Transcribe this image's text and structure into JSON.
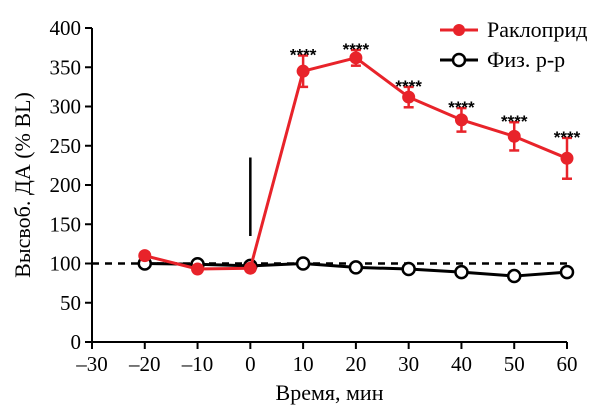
{
  "chart_data": {
    "type": "line",
    "xlabel": "Время, мин",
    "ylabel": "Высвоб. ДА (% BL)",
    "xlim": [
      -30,
      60
    ],
    "ylim": [
      0,
      400
    ],
    "xticks": [
      -30,
      -20,
      -10,
      0,
      10,
      20,
      30,
      40,
      50,
      60
    ],
    "xtick_labels": [
      "–30",
      "–20",
      "–10",
      "0",
      "10",
      "20",
      "30",
      "40",
      "50",
      "60"
    ],
    "yticks": [
      0,
      50,
      100,
      150,
      200,
      250,
      300,
      350,
      400
    ],
    "ytick_labels": [
      "0",
      "50",
      "100",
      "150",
      "200",
      "250",
      "300",
      "350",
      "400"
    ],
    "baseline": 100,
    "injection_time": 0,
    "injection_marker_range": [
      135,
      235
    ],
    "legend_position": "top-right",
    "series": [
      {
        "name": "Раклоприд",
        "color": "#e8232a",
        "marker": "filled-circle",
        "x": [
          -20,
          -10,
          0,
          10,
          20,
          30,
          40,
          50,
          60
        ],
        "y": [
          110,
          93,
          94,
          345,
          362,
          312,
          283,
          262,
          234
        ],
        "err": [
          4,
          3,
          3,
          20,
          10,
          13,
          15,
          18,
          26
        ]
      },
      {
        "name": "Физ. р-р",
        "color": "#000000",
        "marker": "open-circle",
        "x": [
          -20,
          -10,
          0,
          10,
          20,
          30,
          40,
          50,
          60
        ],
        "y": [
          100,
          99,
          97,
          100,
          95,
          93,
          89,
          84,
          89
        ],
        "err": [
          0,
          0,
          0,
          0,
          0,
          0,
          0,
          0,
          0
        ]
      }
    ],
    "annotations": [
      {
        "x": 10,
        "y": 365,
        "text": "****"
      },
      {
        "x": 20,
        "y": 372,
        "text": "****"
      },
      {
        "x": 30,
        "y": 325,
        "text": "****"
      },
      {
        "x": 40,
        "y": 298,
        "text": "****"
      },
      {
        "x": 50,
        "y": 280,
        "text": "****"
      },
      {
        "x": 60,
        "y": 260,
        "text": "****"
      }
    ]
  }
}
